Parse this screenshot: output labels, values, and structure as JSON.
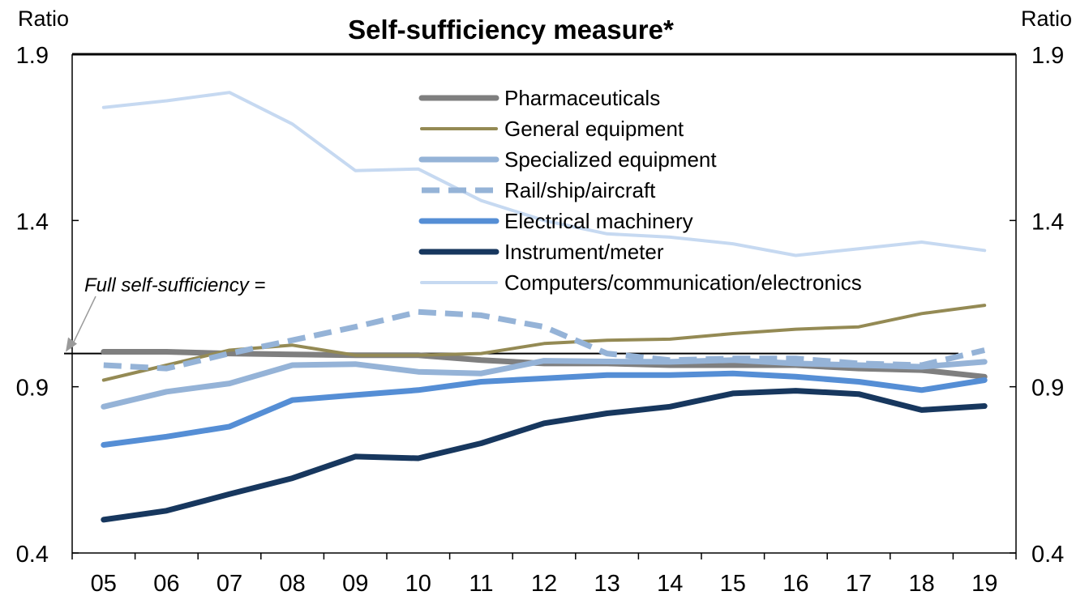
{
  "chart_data": {
    "type": "line",
    "title": "Self-sufficiency measure*",
    "left_unit": "Ratio",
    "right_unit": "Ratio",
    "categories": [
      "05",
      "06",
      "07",
      "08",
      "09",
      "10",
      "11",
      "12",
      "13",
      "14",
      "15",
      "16",
      "17",
      "18",
      "19"
    ],
    "yticks": [
      "1.9",
      "1.4",
      "0.9",
      "0.4"
    ],
    "ylim": [
      0.4,
      1.9
    ],
    "grid": false,
    "legend_position": "top-center",
    "reference_line": {
      "label": "Full self-sufficiency =",
      "value": 1.0
    },
    "series": [
      {
        "name": "Pharmaceuticals",
        "color": "#7f7f7f",
        "dash": false,
        "width": 7,
        "values": [
          1.005,
          1.005,
          1.0,
          0.997,
          0.995,
          0.995,
          0.98,
          0.97,
          0.97,
          0.965,
          0.965,
          0.965,
          0.955,
          0.95,
          0.93
        ]
      },
      {
        "name": "General equipment",
        "color": "#948a54",
        "dash": false,
        "width": 4,
        "values": [
          0.92,
          0.965,
          1.01,
          1.025,
          0.995,
          0.995,
          1.0,
          1.03,
          1.04,
          1.043,
          1.06,
          1.073,
          1.08,
          1.12,
          1.145
        ]
      },
      {
        "name": "Specialized equipment",
        "color": "#95b3d7",
        "dash": false,
        "width": 7,
        "values": [
          0.84,
          0.885,
          0.91,
          0.965,
          0.968,
          0.945,
          0.94,
          0.978,
          0.976,
          0.975,
          0.98,
          0.97,
          0.965,
          0.96,
          0.975
        ]
      },
      {
        "name": "Rail/ship/aircraft",
        "color": "#95b3d7",
        "dash": true,
        "width": 7,
        "values": [
          0.965,
          0.955,
          1.0,
          1.04,
          1.08,
          1.125,
          1.115,
          1.08,
          1.0,
          0.98,
          0.985,
          0.985,
          0.97,
          0.965,
          1.01
        ]
      },
      {
        "name": "Electrical machinery",
        "color": "#558ed5",
        "dash": false,
        "width": 7,
        "values": [
          0.725,
          0.75,
          0.78,
          0.86,
          0.875,
          0.89,
          0.915,
          0.925,
          0.935,
          0.935,
          0.94,
          0.93,
          0.915,
          0.89,
          0.92
        ]
      },
      {
        "name": "Instrument/meter",
        "color": "#17375e",
        "dash": false,
        "width": 7,
        "values": [
          0.5,
          0.527,
          0.577,
          0.625,
          0.69,
          0.685,
          0.73,
          0.79,
          0.82,
          0.84,
          0.88,
          0.888,
          0.878,
          0.83,
          0.842
        ]
      },
      {
        "name": "Computers/communication/electronics",
        "color": "#c6d9f1",
        "dash": false,
        "width": 4,
        "values": [
          1.74,
          1.76,
          1.785,
          1.69,
          1.55,
          1.555,
          1.46,
          1.4,
          1.36,
          1.35,
          1.33,
          1.295,
          1.315,
          1.335,
          1.31
        ]
      }
    ]
  }
}
